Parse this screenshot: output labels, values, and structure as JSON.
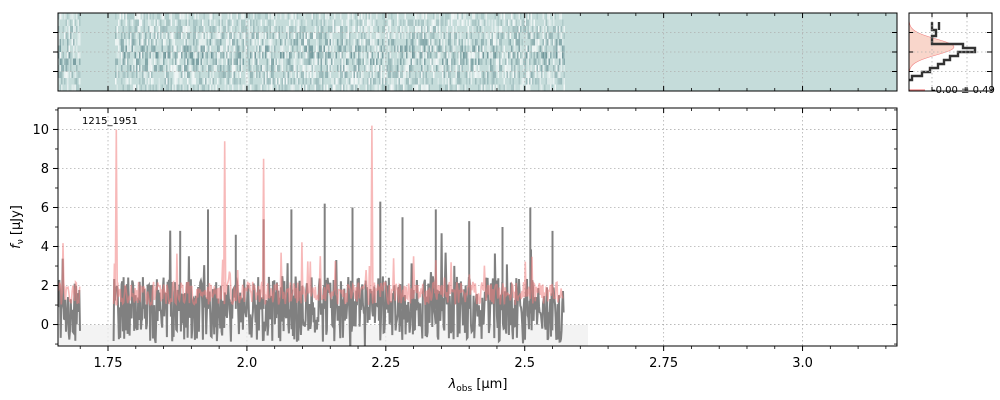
{
  "chart_data": [
    {
      "type": "heatmap",
      "panel": "2d-spectrum",
      "xlim": [
        1.66,
        3.17
      ],
      "data_xrange": [
        1.66,
        2.57
      ],
      "data_gap": [
        1.7,
        1.76
      ],
      "colors": {
        "background": "#c5dcda",
        "dark": "#3f6f76",
        "light": "#ffffff"
      },
      "y_ticks": 3,
      "grid": true
    },
    {
      "type": "line",
      "panel": "1d-spectrum",
      "title": "",
      "annotation": "1215_1951",
      "xlabel": "λ_obs [μm]",
      "xlabel_main": "λ",
      "xlabel_sub": "obs",
      "xlabel_unit": "[μm]",
      "ylabel": "f_ν [μJy]",
      "ylabel_main": "f",
      "ylabel_sub": "ν",
      "ylabel_unit": "[μJy]",
      "xlim": [
        1.66,
        3.17
      ],
      "ylim": [
        -1.1,
        11.1
      ],
      "x_ticks": [
        1.75,
        2.0,
        2.25,
        2.5,
        2.75,
        3.0
      ],
      "x_tick_labels": [
        "1.75",
        "2.0",
        "2.25",
        "2.5",
        "2.75",
        "3.0"
      ],
      "y_ticks": [
        0,
        2,
        4,
        6,
        8,
        10
      ],
      "y_tick_labels": [
        "0",
        "2",
        "4",
        "6",
        "8",
        "10"
      ],
      "grid": true,
      "series": [
        {
          "role": "data",
          "color": "#808080",
          "segments": [
            [
              1.66,
              1.7
            ],
            [
              1.76,
              2.57
            ]
          ],
          "baseline": 0.8,
          "noise_amplitude": 1.2,
          "spikes": [
            [
              1.88,
              4.8
            ],
            [
              1.93,
              5.9
            ],
            [
              1.98,
              4.6
            ],
            [
              2.03,
              5.4
            ],
            [
              2.08,
              5.9
            ],
            [
              2.14,
              6.2
            ],
            [
              2.19,
              6.0
            ],
            [
              2.24,
              6.3
            ],
            [
              2.28,
              5.5
            ],
            [
              2.34,
              5.9
            ],
            [
              2.4,
              5.3
            ],
            [
              2.46,
              5.0
            ],
            [
              2.51,
              6.0
            ],
            [
              2.55,
              4.8
            ]
          ]
        },
        {
          "role": "model",
          "color": "#f08080",
          "segments": [
            [
              1.66,
              1.7
            ],
            [
              1.76,
              2.57
            ]
          ],
          "baseline": 1.6,
          "noise_amplitude": 0.6,
          "lines": [
            [
              1.765,
              10.0
            ],
            [
              1.96,
              9.4
            ],
            [
              2.03,
              8.5
            ],
            [
              2.225,
              10.2
            ],
            [
              2.3,
              3.5
            ],
            [
              2.34,
              3.3
            ]
          ]
        }
      ]
    },
    {
      "type": "bar",
      "panel": "residual-histogram",
      "annotation": "-0.00 ± 0.49",
      "colors": {
        "fill": "#f8cfc2",
        "step": "#333333"
      }
    }
  ]
}
